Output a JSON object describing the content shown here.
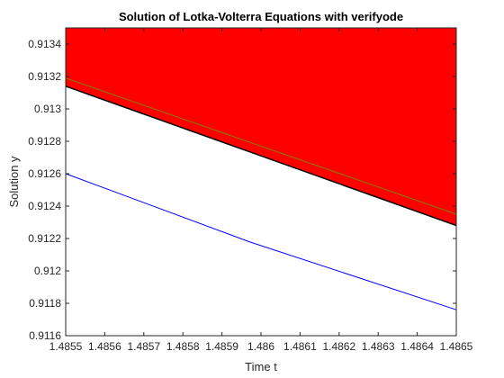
{
  "chart_data": {
    "type": "line",
    "title": "Solution of Lotka-Volterra Equations with verifyode",
    "xlabel": "Time t",
    "ylabel": "Solution y",
    "xlim": [
      1.4855,
      1.4865
    ],
    "ylim": [
      0.9116,
      0.9135
    ],
    "xticks": [
      1.4855,
      1.4856,
      1.4857,
      1.4858,
      1.4859,
      1.486,
      1.4861,
      1.4862,
      1.4863,
      1.4864,
      1.4865
    ],
    "xtick_labels": [
      "1.4855",
      "1.4856",
      "1.4857",
      "1.4858",
      "1.4859",
      "1.486",
      "1.4861",
      "1.4862",
      "1.4863",
      "1.4864",
      "1.4865"
    ],
    "yticks": [
      0.9116,
      0.9118,
      0.912,
      0.9122,
      0.9124,
      0.9126,
      0.9128,
      0.913,
      0.9132,
      0.9134
    ],
    "ytick_labels": [
      "0.9116",
      "0.9118",
      "0.912",
      "0.9122",
      "0.9124",
      "0.9126",
      "0.9128",
      "0.913",
      "0.9132",
      "0.9134"
    ],
    "grid": false,
    "legend": "none",
    "series": [
      {
        "kind": "enclosure-band",
        "color": "#ff0000",
        "x": [
          1.4855,
          1.4865
        ],
        "lower": [
          0.91314,
          0.91228
        ],
        "upper": [
          0.9135,
          0.9135
        ]
      },
      {
        "kind": "line",
        "color": "#000000",
        "x": [
          1.4855,
          1.4865
        ],
        "y": [
          0.91314,
          0.91228
        ]
      },
      {
        "kind": "line",
        "color": "#808000",
        "x": [
          1.4855,
          1.4865
        ],
        "y": [
          0.91319,
          0.91235
        ]
      },
      {
        "kind": "line",
        "color": "#0000ff",
        "x": [
          1.4855,
          1.48597,
          1.4865
        ],
        "y": [
          0.9126,
          0.91218,
          0.91176
        ]
      }
    ]
  }
}
